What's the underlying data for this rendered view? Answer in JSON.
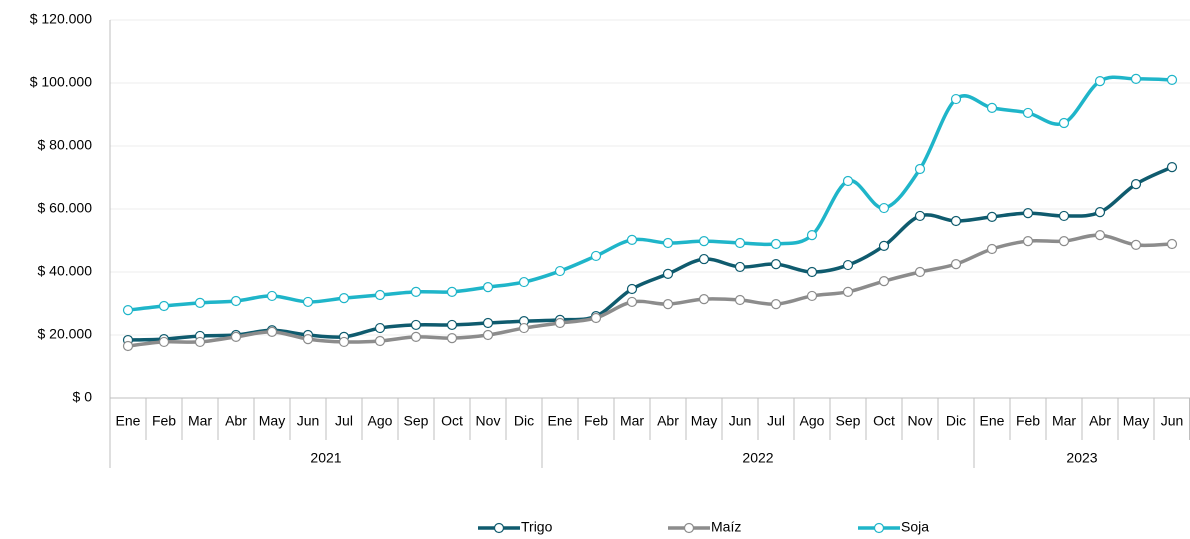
{
  "chart_data": {
    "type": "line",
    "categories": [
      "Ene",
      "Feb",
      "Mar",
      "Abr",
      "May",
      "Jun",
      "Jul",
      "Ago",
      "Sep",
      "Oct",
      "Nov",
      "Dic",
      "Ene",
      "Feb",
      "Mar",
      "Abr",
      "May",
      "Jun",
      "Jul",
      "Ago",
      "Sep",
      "Oct",
      "Nov",
      "Dic",
      "Ene",
      "Feb",
      "Mar",
      "Abr",
      "May",
      "Jun"
    ],
    "years": [
      "2021",
      "2022",
      "2023"
    ],
    "ylim": [
      0,
      120000
    ],
    "yticks": [
      {
        "value": 0,
        "label": "$ 0"
      },
      {
        "value": 20000,
        "label": "$ 20.000"
      },
      {
        "value": 40000,
        "label": "$ 40.000"
      },
      {
        "value": 60000,
        "label": "$ 60.000"
      },
      {
        "value": 80000,
        "label": "$ 80.000"
      },
      {
        "value": 100000,
        "label": "$ 100.000"
      },
      {
        "value": 120000,
        "label": "$ 120.000"
      }
    ],
    "grid": true,
    "legend": "bottom",
    "series": [
      {
        "name": "Trigo",
        "color": "#0f5b6e",
        "values": [
          18400,
          18700,
          19700,
          20000,
          21500,
          20000,
          19400,
          22200,
          23200,
          23200,
          23800,
          24400,
          24800,
          26000,
          34600,
          39400,
          44100,
          41600,
          42500,
          40000,
          42200,
          48300,
          57800,
          56200,
          57500,
          58700,
          57800,
          59000,
          67900,
          73300
        ]
      },
      {
        "name": "Maíz",
        "color": "#8c8c8c",
        "values": [
          16500,
          17800,
          17800,
          19400,
          21000,
          18700,
          17800,
          18100,
          19400,
          19000,
          20000,
          22200,
          23800,
          25400,
          30500,
          29800,
          31400,
          31100,
          29800,
          32400,
          33700,
          37100,
          40000,
          42500,
          47300,
          49800,
          49800,
          51700,
          48600,
          48900
        ]
      },
      {
        "name": "Soja",
        "color": "#1fb5c9",
        "values": [
          27900,
          29200,
          30200,
          30800,
          32400,
          30500,
          31700,
          32700,
          33700,
          33700,
          35200,
          36800,
          40300,
          45100,
          50200,
          49200,
          49800,
          49200,
          48900,
          51700,
          68900,
          60300,
          72700,
          94900,
          92100,
          90500,
          87300,
          100600,
          101300,
          101000
        ]
      }
    ]
  }
}
